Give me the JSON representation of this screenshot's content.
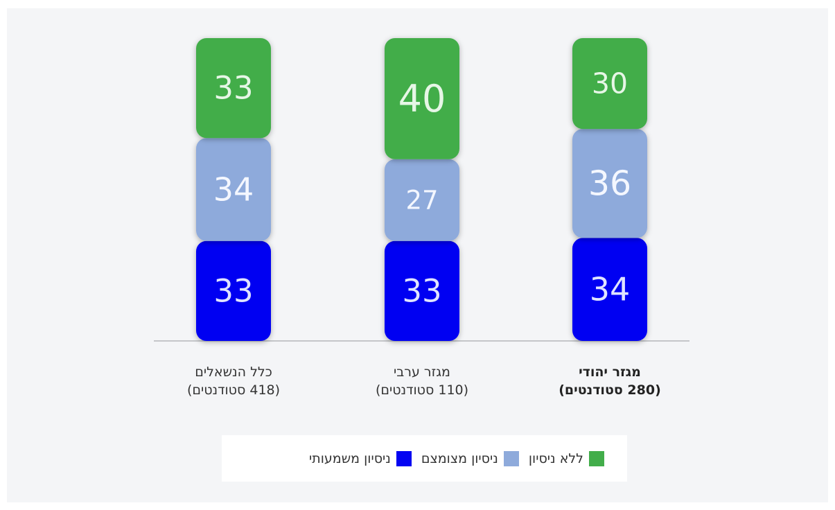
{
  "chart_data": {
    "type": "stacked_bar",
    "categories": [
      [
        "כלל הנשאלים",
        "(418 סטודנטים)"
      ],
      [
        "מגזר ערבי",
        "(110 סטודנטים)"
      ],
      [
        "מגזר יהודי",
        "(280 סטודנטים)"
      ]
    ],
    "series": [
      {
        "name": "ניסיון משמעותי",
        "color": "#0404f2",
        "label_color": "#dfe3ff",
        "values": [
          33,
          33,
          34
        ]
      },
      {
        "name": "ניסיון מצומצם",
        "color": "#8eaadb",
        "label_color": "#f4f7ff",
        "values": [
          34,
          27,
          36
        ]
      },
      {
        "name": "ללא ניסיון",
        "color": "#42ad4a",
        "label_color": "#e6f6e6",
        "values": [
          33,
          40,
          30
        ]
      }
    ],
    "legend_order": [
      2,
      1,
      0
    ]
  }
}
